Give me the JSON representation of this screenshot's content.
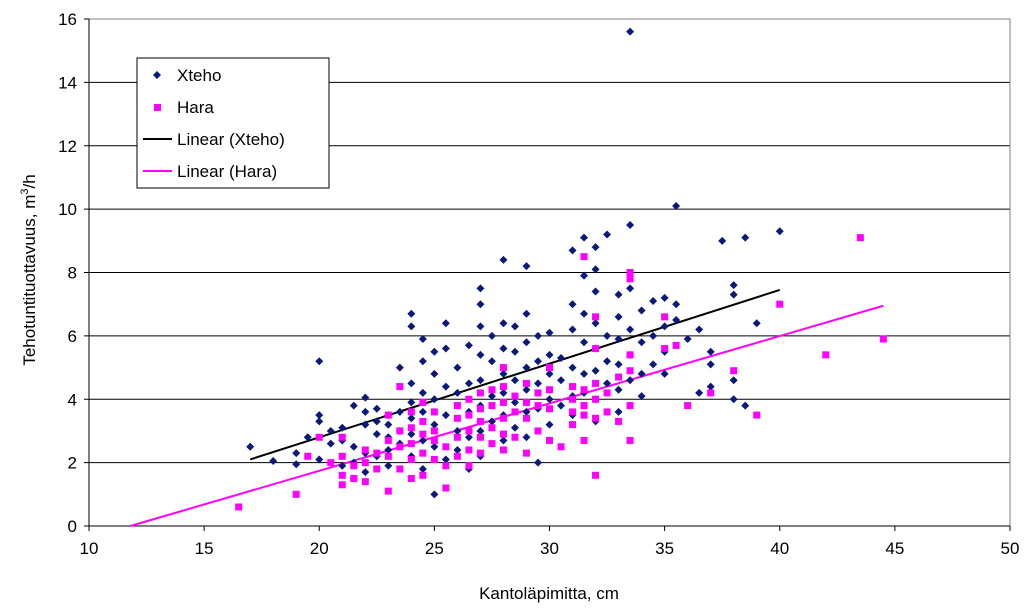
{
  "chart_data": {
    "type": "scatter",
    "xlabel": "Kantoläpimitta, cm",
    "ylabel": "Tehotuntituottavuus, m³/h",
    "ylabel_base": "Tehotuntituottavuus, m",
    "ylabel_sup": "3",
    "ylabel_tail": "/h",
    "xlim": [
      10,
      50
    ],
    "ylim": [
      0,
      16
    ],
    "x_ticks": [
      "10",
      "15",
      "20",
      "25",
      "30",
      "35",
      "40",
      "45",
      "50"
    ],
    "y_ticks": [
      "0",
      "2",
      "4",
      "6",
      "8",
      "10",
      "12",
      "14",
      "16"
    ],
    "grid": "horizontal",
    "legend_position": "top-left",
    "legend": [
      "Xteho",
      "Hara",
      "Linear (Xteho)",
      "Linear (Hara)"
    ],
    "series": [
      {
        "name": "Xteho",
        "marker": "diamond",
        "color": "#0b1a7a",
        "points": [
          [
            17,
            2.5
          ],
          [
            18,
            2.05
          ],
          [
            19,
            1.95
          ],
          [
            19,
            2.3
          ],
          [
            19.5,
            2.8
          ],
          [
            20,
            5.2
          ],
          [
            20,
            3.5
          ],
          [
            20,
            3.3
          ],
          [
            20,
            2.1
          ],
          [
            20.5,
            3.0
          ],
          [
            20.5,
            2.6
          ],
          [
            21,
            3.1
          ],
          [
            21,
            2.7
          ],
          [
            21,
            1.9
          ],
          [
            21.5,
            3.8
          ],
          [
            21.5,
            2.5
          ],
          [
            21.5,
            2.0
          ],
          [
            21.5,
            1.5
          ],
          [
            22,
            4.05
          ],
          [
            22,
            3.6
          ],
          [
            22,
            3.2
          ],
          [
            22,
            2.3
          ],
          [
            22,
            1.7
          ],
          [
            22.5,
            3.7
          ],
          [
            22.5,
            3.3
          ],
          [
            22.5,
            2.9
          ],
          [
            22.5,
            2.2
          ],
          [
            23,
            3.5
          ],
          [
            23,
            3.2
          ],
          [
            23,
            2.8
          ],
          [
            23,
            2.4
          ],
          [
            23,
            1.9
          ],
          [
            23.5,
            5.0
          ],
          [
            23.5,
            3.6
          ],
          [
            23.5,
            3.0
          ],
          [
            23.5,
            2.6
          ],
          [
            24,
            6.7
          ],
          [
            24,
            6.3
          ],
          [
            24,
            4.5
          ],
          [
            24,
            3.9
          ],
          [
            24,
            3.4
          ],
          [
            24,
            2.9
          ],
          [
            24,
            2.2
          ],
          [
            24.5,
            5.9
          ],
          [
            24.5,
            5.2
          ],
          [
            24.5,
            4.2
          ],
          [
            24.5,
            3.6
          ],
          [
            24.5,
            2.7
          ],
          [
            24.5,
            1.8
          ],
          [
            25,
            5.5
          ],
          [
            25,
            4.8
          ],
          [
            25,
            4.0
          ],
          [
            25,
            3.2
          ],
          [
            25,
            2.5
          ],
          [
            25,
            1.0
          ],
          [
            25.5,
            6.4
          ],
          [
            25.5,
            5.6
          ],
          [
            25.5,
            4.4
          ],
          [
            25.5,
            3.5
          ],
          [
            25.5,
            2.1
          ],
          [
            26,
            5.0
          ],
          [
            26,
            4.2
          ],
          [
            26,
            3.0
          ],
          [
            26,
            2.4
          ],
          [
            26.5,
            5.7
          ],
          [
            26.5,
            4.5
          ],
          [
            26.5,
            3.6
          ],
          [
            26.5,
            2.8
          ],
          [
            26.5,
            1.8
          ],
          [
            27,
            7.5
          ],
          [
            27,
            7.0
          ],
          [
            27,
            6.3
          ],
          [
            27,
            5.4
          ],
          [
            27,
            4.6
          ],
          [
            27,
            3.8
          ],
          [
            27,
            3.0
          ],
          [
            27,
            2.2
          ],
          [
            27.5,
            6.0
          ],
          [
            27.5,
            5.2
          ],
          [
            27.5,
            4.1
          ],
          [
            27.5,
            3.3
          ],
          [
            28,
            8.4
          ],
          [
            28,
            6.4
          ],
          [
            28,
            5.6
          ],
          [
            28,
            4.8
          ],
          [
            28,
            4.2
          ],
          [
            28,
            3.5
          ],
          [
            28,
            2.7
          ],
          [
            28.5,
            6.3
          ],
          [
            28.5,
            5.5
          ],
          [
            28.5,
            4.6
          ],
          [
            28.5,
            3.9
          ],
          [
            28.5,
            3.1
          ],
          [
            29,
            8.2
          ],
          [
            29,
            6.7
          ],
          [
            29,
            5.8
          ],
          [
            29,
            5.0
          ],
          [
            29,
            4.3
          ],
          [
            29,
            3.6
          ],
          [
            29,
            2.8
          ],
          [
            29.5,
            6.0
          ],
          [
            29.5,
            5.2
          ],
          [
            29.5,
            4.5
          ],
          [
            29.5,
            3.7
          ],
          [
            29.5,
            2.0
          ],
          [
            30,
            6.1
          ],
          [
            30,
            5.4
          ],
          [
            30,
            4.8
          ],
          [
            30,
            4.0
          ],
          [
            30,
            3.2
          ],
          [
            30.5,
            5.3
          ],
          [
            30.5,
            4.6
          ],
          [
            30.5,
            3.8
          ],
          [
            31,
            8.7
          ],
          [
            31,
            7.0
          ],
          [
            31,
            6.2
          ],
          [
            31,
            5.0
          ],
          [
            31,
            4.1
          ],
          [
            31,
            3.5
          ],
          [
            31.5,
            9.1
          ],
          [
            31.5,
            7.9
          ],
          [
            31.5,
            6.7
          ],
          [
            31.5,
            5.8
          ],
          [
            31.5,
            4.8
          ],
          [
            31.5,
            4.2
          ],
          [
            32,
            8.8
          ],
          [
            32,
            8.1
          ],
          [
            32,
            7.4
          ],
          [
            32,
            6.4
          ],
          [
            32,
            5.6
          ],
          [
            32,
            4.9
          ],
          [
            32,
            4.0
          ],
          [
            32,
            3.3
          ],
          [
            32.5,
            9.2
          ],
          [
            32.5,
            6.0
          ],
          [
            32.5,
            5.2
          ],
          [
            32.5,
            4.5
          ],
          [
            33,
            7.3
          ],
          [
            33,
            6.6
          ],
          [
            33,
            5.9
          ],
          [
            33,
            5.1
          ],
          [
            33,
            4.3
          ],
          [
            33,
            3.6
          ],
          [
            33.5,
            15.6
          ],
          [
            33.5,
            9.5
          ],
          [
            33.5,
            7.5
          ],
          [
            33.5,
            6.2
          ],
          [
            33.5,
            5.4
          ],
          [
            33.5,
            4.6
          ],
          [
            34,
            6.8
          ],
          [
            34,
            5.8
          ],
          [
            34,
            4.8
          ],
          [
            34,
            4.1
          ],
          [
            34.5,
            7.1
          ],
          [
            34.5,
            6.0
          ],
          [
            34.5,
            5.1
          ],
          [
            35,
            7.2
          ],
          [
            35,
            6.3
          ],
          [
            35,
            5.5
          ],
          [
            35,
            4.8
          ],
          [
            35.5,
            10.1
          ],
          [
            35.5,
            7.0
          ],
          [
            35.5,
            6.5
          ],
          [
            36,
            5.9
          ],
          [
            36.5,
            6.2
          ],
          [
            36.5,
            4.2
          ],
          [
            37,
            5.5
          ],
          [
            37,
            5.1
          ],
          [
            37,
            4.4
          ],
          [
            37.5,
            9.0
          ],
          [
            38,
            7.6
          ],
          [
            38,
            7.3
          ],
          [
            38,
            4.6
          ],
          [
            38,
            4.0
          ],
          [
            38.5,
            9.1
          ],
          [
            38.5,
            3.8
          ],
          [
            39,
            6.4
          ],
          [
            40,
            9.3
          ]
        ]
      },
      {
        "name": "Hara",
        "marker": "square",
        "color": "#ff00ff",
        "points": [
          [
            16.5,
            0.6
          ],
          [
            19,
            1.0
          ],
          [
            19.5,
            2.2
          ],
          [
            20,
            2.8
          ],
          [
            20.5,
            2.0
          ],
          [
            21,
            1.3
          ],
          [
            21,
            1.6
          ],
          [
            21,
            2.2
          ],
          [
            21,
            2.8
          ],
          [
            21.5,
            1.9
          ],
          [
            21.5,
            1.5
          ],
          [
            22,
            2.4
          ],
          [
            22,
            2.0
          ],
          [
            22,
            1.4
          ],
          [
            22.5,
            2.3
          ],
          [
            22.5,
            1.8
          ],
          [
            23,
            3.5
          ],
          [
            23,
            2.7
          ],
          [
            23,
            2.2
          ],
          [
            23,
            1.1
          ],
          [
            23.5,
            4.4
          ],
          [
            23.5,
            3.0
          ],
          [
            23.5,
            2.5
          ],
          [
            23.5,
            1.8
          ],
          [
            24,
            3.6
          ],
          [
            24,
            3.1
          ],
          [
            24,
            2.6
          ],
          [
            24,
            2.1
          ],
          [
            24,
            1.5
          ],
          [
            24.5,
            3.9
          ],
          [
            24.5,
            3.3
          ],
          [
            24.5,
            2.9
          ],
          [
            24.5,
            2.3
          ],
          [
            24.5,
            1.6
          ],
          [
            25,
            3.6
          ],
          [
            25,
            3.0
          ],
          [
            25,
            2.7
          ],
          [
            25,
            2.1
          ],
          [
            25.5,
            2.5
          ],
          [
            25.5,
            1.9
          ],
          [
            25.5,
            1.2
          ],
          [
            26,
            3.8
          ],
          [
            26,
            3.4
          ],
          [
            26,
            2.8
          ],
          [
            26,
            2.2
          ],
          [
            26.5,
            4.0
          ],
          [
            26.5,
            3.5
          ],
          [
            26.5,
            3.0
          ],
          [
            26.5,
            2.4
          ],
          [
            26.5,
            1.9
          ],
          [
            27,
            4.2
          ],
          [
            27,
            3.7
          ],
          [
            27,
            3.3
          ],
          [
            27,
            2.8
          ],
          [
            27,
            2.3
          ],
          [
            27.5,
            4.3
          ],
          [
            27.5,
            3.8
          ],
          [
            27.5,
            3.1
          ],
          [
            27.5,
            2.6
          ],
          [
            28,
            5.0
          ],
          [
            28,
            4.4
          ],
          [
            28,
            3.9
          ],
          [
            28,
            3.4
          ],
          [
            28,
            2.9
          ],
          [
            28,
            2.4
          ],
          [
            28.5,
            4.1
          ],
          [
            28.5,
            3.6
          ],
          [
            28.5,
            2.8
          ],
          [
            29,
            4.5
          ],
          [
            29,
            3.9
          ],
          [
            29,
            3.4
          ],
          [
            29,
            2.3
          ],
          [
            29.5,
            4.2
          ],
          [
            29.5,
            3.8
          ],
          [
            29.5,
            3.0
          ],
          [
            30,
            5.0
          ],
          [
            30,
            4.3
          ],
          [
            30,
            3.7
          ],
          [
            30,
            2.7
          ],
          [
            30.5,
            2.5
          ],
          [
            31,
            4.0
          ],
          [
            31,
            3.6
          ],
          [
            31,
            3.2
          ],
          [
            31,
            4.4
          ],
          [
            31.5,
            8.5
          ],
          [
            31.5,
            4.3
          ],
          [
            31.5,
            3.8
          ],
          [
            31.5,
            3.5
          ],
          [
            31.5,
            2.7
          ],
          [
            32,
            6.6
          ],
          [
            32,
            5.6
          ],
          [
            32,
            4.5
          ],
          [
            32,
            4.0
          ],
          [
            32,
            3.4
          ],
          [
            32,
            1.6
          ],
          [
            32.5,
            4.2
          ],
          [
            32.5,
            3.6
          ],
          [
            33,
            4.7
          ],
          [
            33,
            3.3
          ],
          [
            33.5,
            8.0
          ],
          [
            33.5,
            7.8
          ],
          [
            33.5,
            5.4
          ],
          [
            33.5,
            4.9
          ],
          [
            33.5,
            3.8
          ],
          [
            33.5,
            2.7
          ],
          [
            35,
            6.6
          ],
          [
            35,
            5.6
          ],
          [
            35.5,
            5.7
          ],
          [
            36,
            3.8
          ],
          [
            37,
            4.2
          ],
          [
            38,
            4.9
          ],
          [
            39,
            3.5
          ],
          [
            40,
            7.0
          ],
          [
            42,
            5.4
          ],
          [
            43.5,
            9.1
          ],
          [
            44.5,
            5.9
          ]
        ]
      }
    ],
    "trendlines": [
      {
        "name": "Linear (Xteho)",
        "color": "#000000",
        "from": [
          17,
          2.1
        ],
        "to": [
          40,
          7.45
        ]
      },
      {
        "name": "Linear (Hara)",
        "color": "#ff00ff",
        "from": [
          11.8,
          0
        ],
        "to": [
          44.5,
          6.95
        ]
      }
    ]
  }
}
